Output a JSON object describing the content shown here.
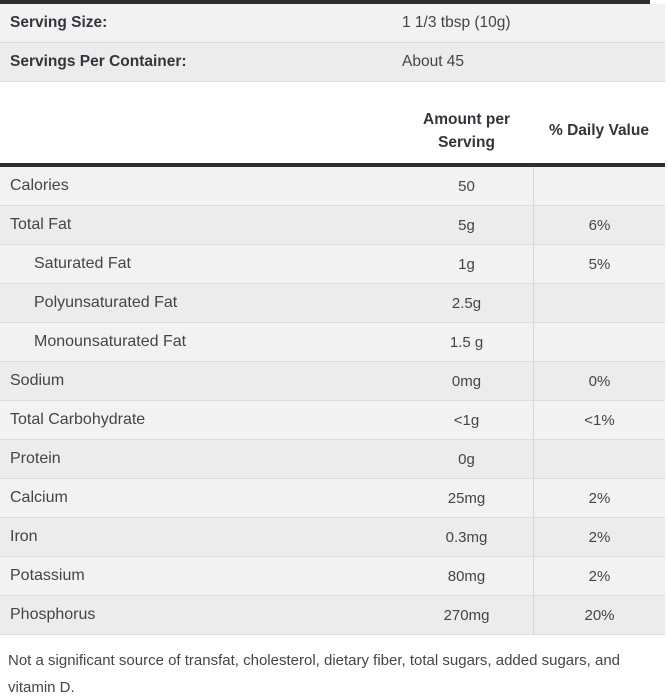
{
  "colors": {
    "border_dark": "#2e2e2e",
    "row_light": "#f2f2f2",
    "row_dark": "#ececec",
    "separator": "#dddddd",
    "divider": "#d4d4d4",
    "text_regular": "#44444b",
    "text_bold": "#34343c"
  },
  "serving_info": {
    "rows": [
      {
        "label": "Serving Size:",
        "value": "1 1/3 tbsp (10g)"
      },
      {
        "label": "Servings Per Container:",
        "value": "About 45"
      }
    ]
  },
  "nutrition_table": {
    "headers": {
      "amount": "Amount per Serving",
      "daily_value": "% Daily Value"
    },
    "rows": [
      {
        "label": "Calories",
        "amount": "50",
        "daily_value": ""
      },
      {
        "label": "Total Fat",
        "amount": "5g",
        "daily_value": "6%"
      },
      {
        "label": "Saturated Fat",
        "amount": "1g",
        "daily_value": "5%"
      },
      {
        "label": "Polyunsaturated Fat",
        "amount": "2.5g",
        "daily_value": ""
      },
      {
        "label": "Monounsaturated Fat",
        "amount": "1.5 g",
        "daily_value": ""
      },
      {
        "label": "Sodium",
        "amount": "0mg",
        "daily_value": "0%"
      },
      {
        "label": "Total Carbohydrate",
        "amount": "<1g",
        "daily_value": "<1%"
      },
      {
        "label": "Protein",
        "amount": "0g",
        "daily_value": ""
      },
      {
        "label": "Calcium",
        "amount": "25mg",
        "daily_value": "2%"
      },
      {
        "label": "Iron",
        "amount": "0.3mg",
        "daily_value": "2%"
      },
      {
        "label": "Potassium",
        "amount": "80mg",
        "daily_value": "2%"
      },
      {
        "label": "Phosphorus",
        "amount": "270mg",
        "daily_value": "20%"
      }
    ]
  },
  "footnote": "Not a significant source of transfat, cholesterol, dietary fiber, total sugars, added sugars, and vitamin D."
}
